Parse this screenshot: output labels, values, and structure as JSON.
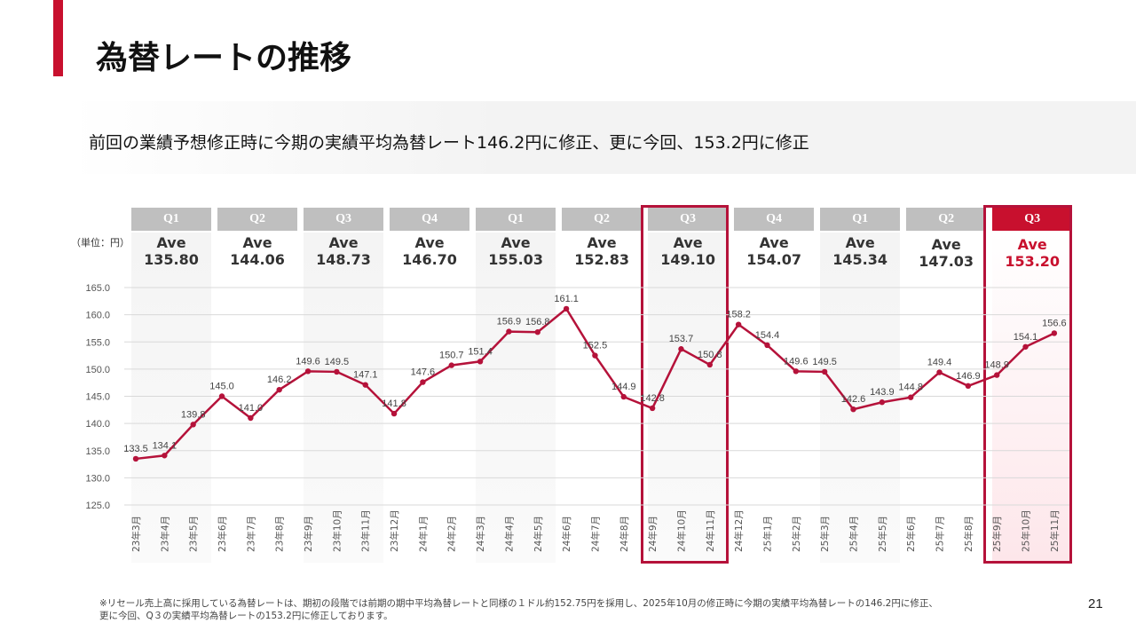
{
  "title": "為替レートの推移",
  "subtitle": "前回の業績予想修正時に今期の実績平均為替レート146.2円に修正、更に今回、153.2円に修正",
  "unit": "（単位：円）",
  "quarters": [
    {
      "label": "Q1",
      "ave_label": "Ave",
      "ave": "135.80"
    },
    {
      "label": "Q2",
      "ave_label": "Ave",
      "ave": "144.06"
    },
    {
      "label": "Q3",
      "ave_label": "Ave",
      "ave": "148.73"
    },
    {
      "label": "Q4",
      "ave_label": "Ave",
      "ave": "146.70"
    },
    {
      "label": "Q1",
      "ave_label": "Ave",
      "ave": "155.03"
    },
    {
      "label": "Q2",
      "ave_label": "Ave",
      "ave": "152.83"
    },
    {
      "label": "Q3",
      "ave_label": "Ave",
      "ave": "149.10"
    },
    {
      "label": "Q4",
      "ave_label": "Ave",
      "ave": "154.07"
    },
    {
      "label": "Q1",
      "ave_label": "Ave",
      "ave": "145.34"
    },
    {
      "label": "Q2",
      "ave_label": "Ave",
      "ave": "147.03"
    },
    {
      "label": "Q3",
      "ave_label": "Ave",
      "ave": "153.20"
    }
  ],
  "chart_data": {
    "type": "line",
    "x": [
      "23年3月",
      "23年4月",
      "23年5月",
      "23年6月",
      "23年7月",
      "23年8月",
      "23年9月",
      "23年10月",
      "23年11月",
      "23年12月",
      "24年1月",
      "24年2月",
      "24年3月",
      "24年4月",
      "24年5月",
      "24年6月",
      "24年7月",
      "24年8月",
      "24年9月",
      "24年10月",
      "24年11月",
      "24年12月",
      "25年1月",
      "25年2月",
      "25年3月",
      "25年4月",
      "25年5月",
      "25年6月",
      "25年7月",
      "25年8月",
      "25年9月",
      "25年10月",
      "25年11月"
    ],
    "values": [
      133.5,
      134.1,
      139.8,
      145.0,
      141.0,
      146.2,
      149.6,
      149.5,
      147.1,
      141.8,
      147.6,
      150.7,
      151.4,
      156.9,
      156.8,
      161.1,
      152.5,
      144.9,
      142.8,
      153.7,
      150.8,
      158.2,
      154.4,
      149.6,
      149.5,
      142.6,
      143.9,
      144.8,
      149.4,
      146.9,
      148.9,
      154.1,
      156.6
    ],
    "yticks": [
      "125.0",
      "130.0",
      "135.0",
      "140.0",
      "145.0",
      "150.0",
      "155.0",
      "160.0",
      "165.0"
    ],
    "ylim": [
      125,
      165
    ],
    "grid": true,
    "line_color": "#b5123a"
  },
  "footnote": [
    "※リセール売上高に採用している為替レートは、期初の段階では前期の期中平均為替レートと同様の１ドル約152.75円を採用し、2025年10月の修正時に今期の実績平均為替レートの146.2円に修正、",
    "更に今回、Q３の実績平均為替レートの153.2円に修正しております。"
  ],
  "page_number": "21"
}
